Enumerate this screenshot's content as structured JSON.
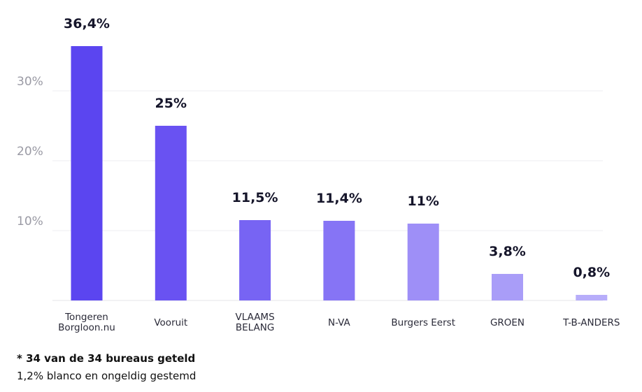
{
  "chart_data": {
    "type": "bar",
    "categories": [
      "Tongeren\nBorgloon.nu",
      "Vooruit",
      "VLAAMS\nBELANG",
      "N-VA",
      "Burgers Eerst",
      "GROEN",
      "T-B-ANDERS"
    ],
    "values": [
      36.4,
      25,
      11.5,
      11.4,
      11,
      3.8,
      0.8
    ],
    "value_labels": [
      "36,4%",
      "25%",
      "11,5%",
      "11,4%",
      "11%",
      "3,8%",
      "0,8%"
    ],
    "yticks": [
      10,
      20,
      30
    ],
    "ytick_labels": [
      "10%",
      "20%",
      "30%"
    ],
    "ylim": [
      0,
      40
    ],
    "grid": true,
    "colors": [
      "#5b45f0",
      "#6952f2",
      "#7764f3",
      "#8674f5",
      "#9e8ff7",
      "#a99df8",
      "#b7adfa"
    ],
    "title": "",
    "xlabel": "",
    "ylabel": ""
  },
  "footnote": {
    "counted": "* 34 van de 34 bureaus geteld",
    "blank": "1,2% blanco en ongeldig gestemd"
  }
}
